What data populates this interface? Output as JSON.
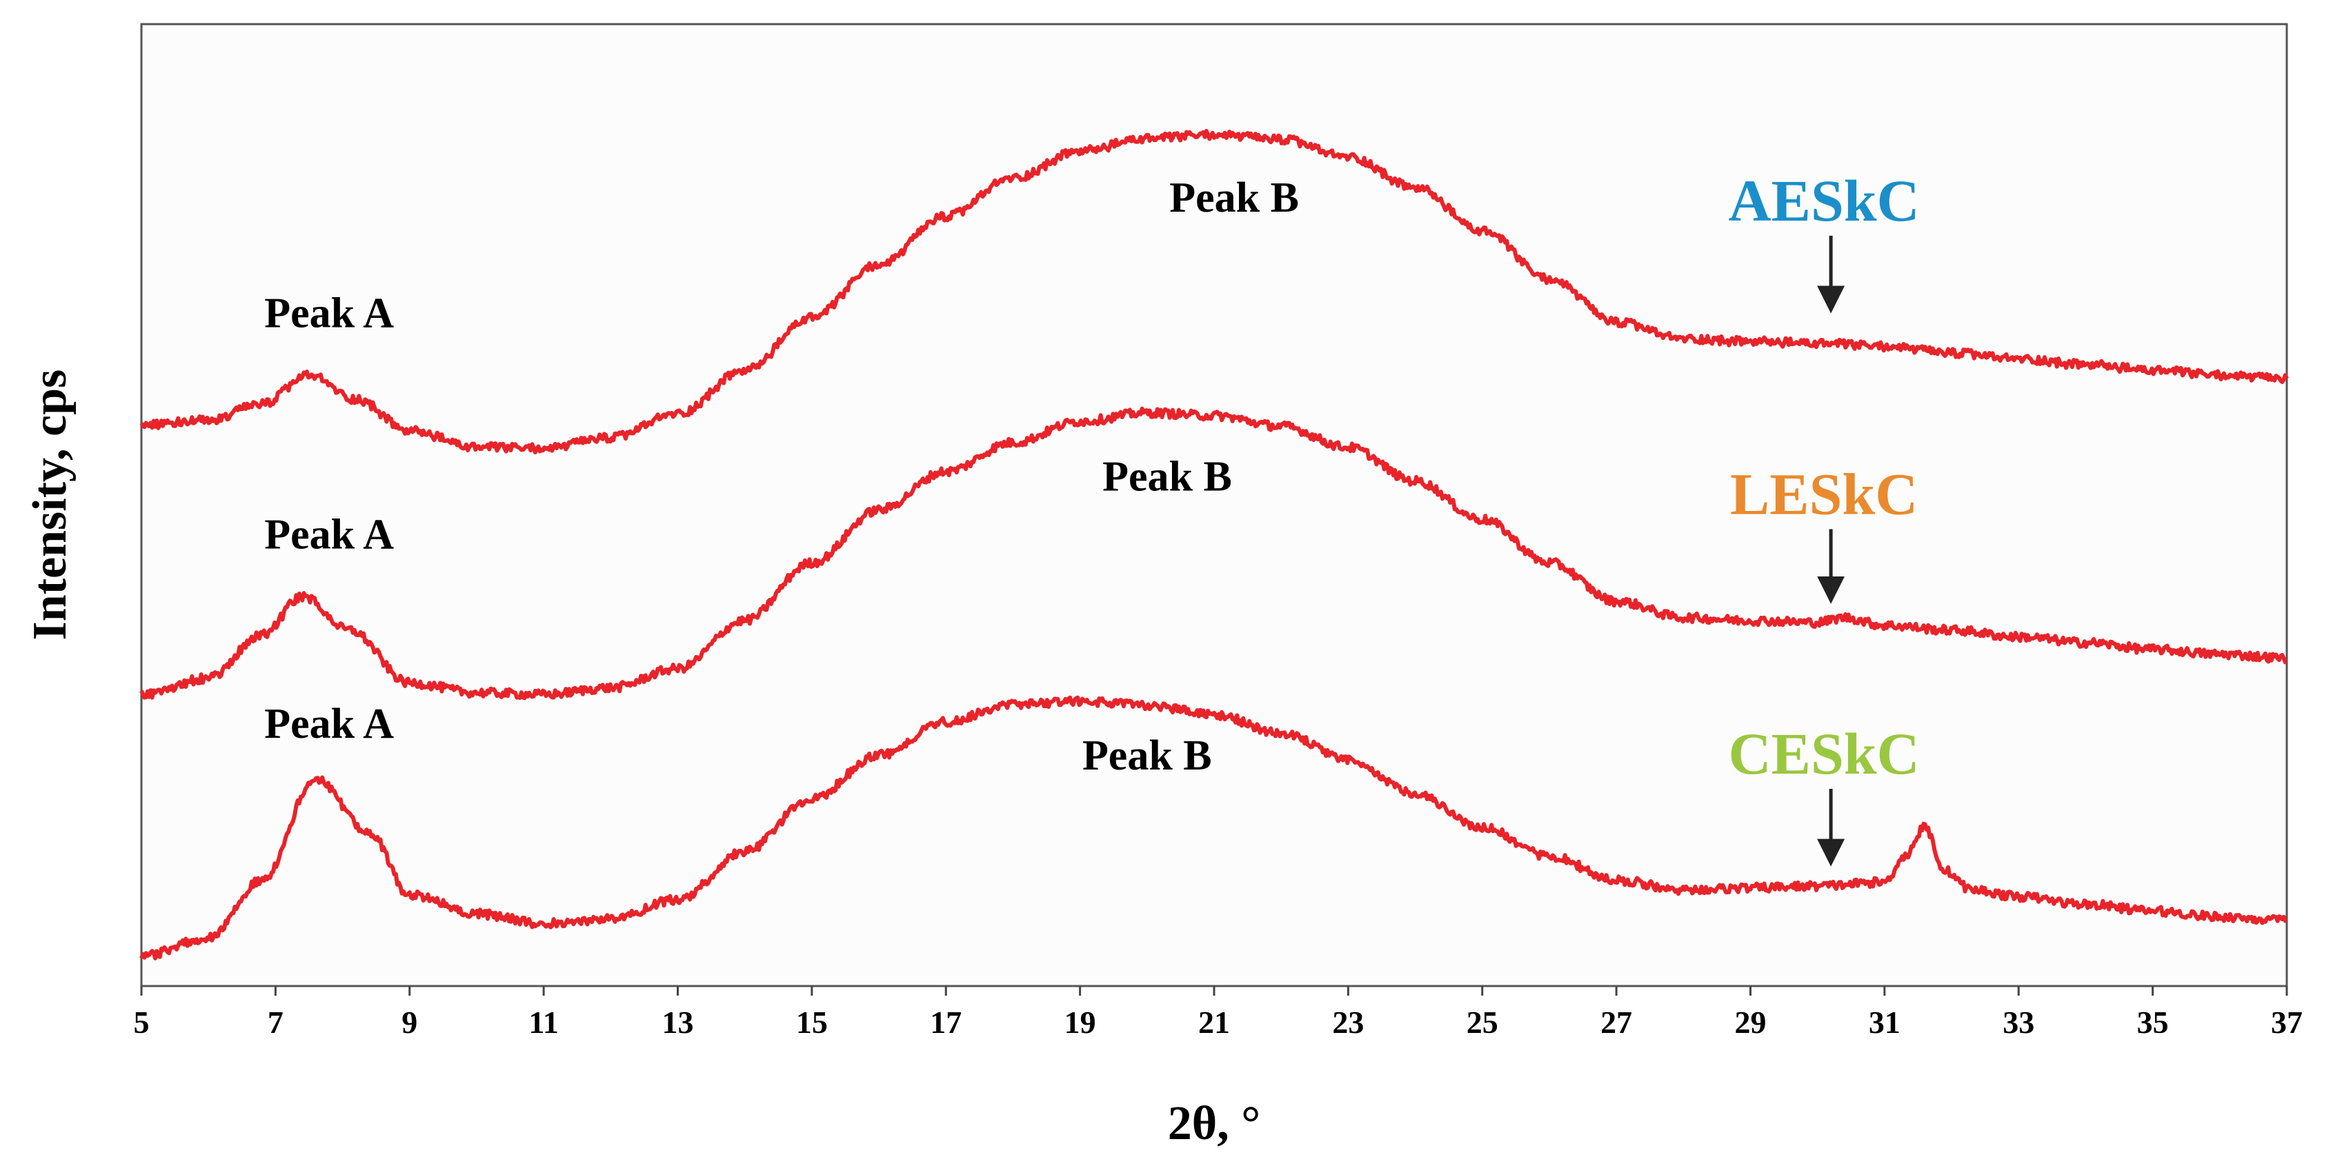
{
  "chart_data": {
    "type": "line",
    "title": "",
    "xlabel": "2θ, °",
    "ylabel": "Intensity, cps",
    "xlim": [
      5,
      37
    ],
    "ylim": [
      0,
      100
    ],
    "y_ticks_shown": false,
    "x_ticks": [
      5,
      7,
      9,
      11,
      13,
      15,
      17,
      19,
      21,
      23,
      25,
      27,
      29,
      31,
      33,
      35,
      37
    ],
    "line_color": "#e8242a",
    "series": [
      {
        "name": "AESkC",
        "color": "#1b8fc9",
        "x": [
          5,
          6,
          6.8,
          7.5,
          8.2,
          9,
          10,
          11,
          12,
          13,
          14,
          15,
          16,
          17,
          18,
          19,
          20,
          21,
          22,
          23,
          24,
          25,
          26,
          27,
          28,
          29,
          30,
          31,
          32,
          33,
          34,
          35,
          36,
          37
        ],
        "values": [
          58.4,
          58.8,
          60.5,
          63.5,
          61.0,
          57.7,
          56.0,
          55.9,
          57.0,
          59.5,
          64.0,
          69.5,
          75.0,
          80.0,
          84.0,
          86.8,
          88.1,
          88.5,
          88.0,
          86.2,
          83.0,
          78.5,
          73.5,
          69.0,
          67.3,
          67.0,
          66.8,
          66.5,
          65.8,
          65.2,
          64.6,
          64.0,
          63.5,
          63.1
        ],
        "annotations": [
          {
            "text": "Peak A",
            "x": 7.8,
            "y": 68.5
          },
          {
            "text": "Peak B",
            "x": 21.3,
            "y": 80.5
          }
        ]
      },
      {
        "name": "LESkC",
        "color": "#e98a2e",
        "x": [
          5,
          6,
          6.8,
          7.4,
          8.1,
          9,
          10,
          11,
          12,
          13,
          14,
          15,
          16,
          17,
          18,
          19,
          20,
          21,
          22,
          23,
          24,
          25,
          26,
          27,
          28,
          29,
          30,
          30.4,
          31,
          32,
          33,
          34,
          35,
          36,
          37
        ],
        "values": [
          30.3,
          32.0,
          36.5,
          40.5,
          37.0,
          31.5,
          30.5,
          30.3,
          31.0,
          33.0,
          38.0,
          44.0,
          49.5,
          53.5,
          56.5,
          58.7,
          59.6,
          59.3,
          58.2,
          56.0,
          52.5,
          48.5,
          44.0,
          40.0,
          38.3,
          38.0,
          37.8,
          38.3,
          37.5,
          37.0,
          36.3,
          35.7,
          35.0,
          34.5,
          34.1
        ],
        "annotations": [
          {
            "text": "Peak A",
            "x": 7.8,
            "y": 45.5
          },
          {
            "text": "Peak B",
            "x": 20.3,
            "y": 51.5
          }
        ]
      },
      {
        "name": "CESkC",
        "color": "#9ac740",
        "x": [
          5,
          6,
          6.8,
          7.6,
          8.4,
          9,
          10,
          11,
          12,
          13,
          14,
          15,
          16,
          17,
          18,
          19,
          20,
          21,
          22,
          23,
          24,
          25,
          26,
          27,
          28,
          29,
          30,
          31,
          31.3,
          31.6,
          31.9,
          32.3,
          33,
          34,
          35,
          36,
          37
        ],
        "values": [
          3.1,
          5.0,
          11.0,
          21.5,
          16.0,
          9.5,
          7.5,
          6.5,
          7.0,
          9.0,
          14.0,
          19.5,
          24.0,
          27.5,
          29.3,
          29.6,
          29.2,
          28.2,
          26.3,
          23.5,
          20.0,
          16.5,
          13.5,
          11.0,
          10.0,
          10.2,
          10.4,
          10.8,
          13.5,
          16.5,
          12.0,
          10.0,
          9.3,
          8.5,
          7.8,
          7.2,
          6.8
        ],
        "annotations": [
          {
            "text": "Peak A",
            "x": 7.8,
            "y": 25.8
          },
          {
            "text": "Peak B",
            "x": 20.0,
            "y": 22.5
          }
        ]
      }
    ],
    "markers": [
      {
        "series": "AESkC",
        "arrow_x": 30.2,
        "y_from": 78.0,
        "y_to": 69.5
      },
      {
        "series": "LESkC",
        "arrow_x": 30.2,
        "y_from": 47.5,
        "y_to": 39.3
      },
      {
        "series": "CESkC",
        "arrow_x": 30.2,
        "y_from": 20.5,
        "y_to": 12.0
      }
    ]
  }
}
